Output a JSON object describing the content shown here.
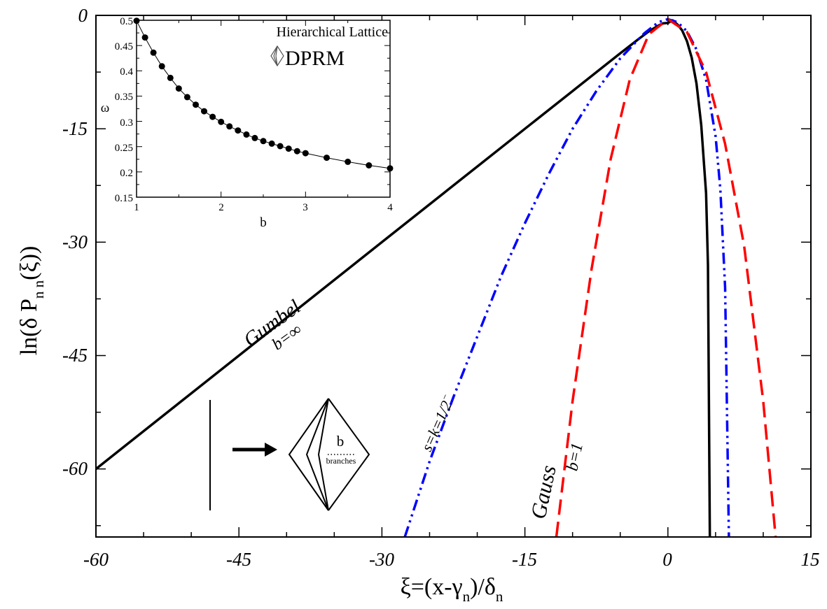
{
  "chart_data": [
    {
      "type": "line",
      "xlabel": "ξ=(x-γ_n)/δ_n",
      "ylabel": "ln(δ_n P_n(ξ))",
      "xlim": [
        -60,
        15
      ],
      "ylim": [
        -69,
        0
      ],
      "xticks": [
        -60,
        -45,
        -30,
        -15,
        0,
        15
      ],
      "yticks": [
        0,
        -15,
        -30,
        -45,
        -60
      ],
      "grid": false,
      "series": [
        {
          "name": "Gumbel b=∞",
          "color": "#000000",
          "style": "solid",
          "x": [
            -60,
            -50,
            -40,
            -30,
            -20,
            -10,
            -5,
            -3,
            -2,
            -1,
            -0.5,
            0,
            0.5,
            1,
            1.5,
            2,
            2.5,
            3,
            3.5,
            4,
            4.2,
            4.4
          ],
          "y": [
            -60,
            -50,
            -40,
            -30,
            -20,
            -10.01,
            -5.02,
            -3.05,
            -2.12,
            -1.35,
            -1.05,
            -1.0,
            -0.65,
            -1.2,
            -2.0,
            -3.4,
            -5.6,
            -9.0,
            -14.5,
            -23.5,
            -33.0,
            -69
          ]
        },
        {
          "name": "s=k=1/2⁻",
          "color": "#0000ff",
          "style": "dashdotdot",
          "x": [
            -27.6,
            -25,
            -22.5,
            -20,
            -17.5,
            -15,
            -12.5,
            -10,
            -7.5,
            -5,
            -2.5,
            -1,
            0,
            1,
            2,
            3,
            4,
            5,
            5.5,
            6,
            6.4
          ],
          "y": [
            -69,
            -59,
            -50.5,
            -42.5,
            -34.5,
            -27.5,
            -21,
            -15,
            -10,
            -5.7,
            -2.4,
            -0.9,
            -0.5,
            -0.9,
            -2.1,
            -4.5,
            -8.5,
            -16,
            -23,
            -36,
            -69
          ]
        },
        {
          "name": "Gauss b=1",
          "color": "#ff0000",
          "style": "dashed",
          "x": [
            -11.7,
            -10,
            -8,
            -6,
            -4,
            -2,
            0,
            2,
            4,
            6,
            8,
            10,
            11.3
          ],
          "y": [
            -69,
            -51,
            -33.5,
            -19,
            -8.5,
            -2.5,
            -0.5,
            -2.2,
            -7.5,
            -17,
            -30.5,
            -51,
            -69
          ]
        }
      ],
      "annotations": [
        {
          "text": "Gumbel",
          "x": -40,
          "y": -40
        },
        {
          "text": "b=∞",
          "x": -38,
          "y": -43
        },
        {
          "text": "s=k=1/2⁻",
          "x": -24,
          "y": -55
        },
        {
          "text": "Gauss",
          "x": -11,
          "y": -61
        },
        {
          "text": "b=1",
          "x": -9.5,
          "y": -60
        }
      ]
    },
    {
      "type": "line",
      "title": "Hierarchical Lattice DPRM",
      "xlabel": "b",
      "ylabel": "ω",
      "xlim": [
        1,
        4
      ],
      "ylim": [
        0.15,
        0.5
      ],
      "xticks": [
        1,
        2,
        3,
        4
      ],
      "yticks": [
        0.15,
        0.2,
        0.25,
        0.3,
        0.35,
        0.4,
        0.45,
        0.5
      ],
      "series": [
        {
          "name": "ω(b)",
          "color": "#000000",
          "x": [
            1.0,
            1.1,
            1.2,
            1.3,
            1.4,
            1.5,
            1.6,
            1.7,
            1.8,
            1.9,
            2.0,
            2.1,
            2.2,
            2.3,
            2.4,
            2.5,
            2.6,
            2.7,
            2.8,
            2.9,
            3.0,
            3.25,
            3.5,
            3.75,
            4.0
          ],
          "y": [
            0.499,
            0.466,
            0.436,
            0.409,
            0.386,
            0.365,
            0.348,
            0.333,
            0.32,
            0.309,
            0.299,
            0.29,
            0.282,
            0.274,
            0.267,
            0.261,
            0.256,
            0.251,
            0.246,
            0.241,
            0.237,
            0.228,
            0.22,
            0.213,
            0.207
          ]
        }
      ]
    }
  ],
  "labels": {
    "x_tick_labels": [
      "-60",
      "-45",
      "-30",
      "-15",
      "0",
      "15"
    ],
    "y_tick_labels": [
      "0",
      "-15",
      "-30",
      "-45",
      "-60"
    ],
    "xlabel_main": "ξ=(x-γ",
    "xlabel_sub1": "n",
    "xlabel_mid": ")/δ",
    "xlabel_sub2": "n",
    "ylabel_main": "ln(δ P",
    "ylabel_subs": "n  n",
    "ylabel_end": "(ξ))",
    "gumbel": "Gumbel",
    "gumbel_b": "b=∞",
    "skew": "s=k=1/2",
    "skew_sup": "−",
    "gauss": "Gauss",
    "gauss_b": "b=1",
    "inset_title1": "Hierarchical Lattice",
    "inset_title2": "DPRM",
    "inset_xlabel": "b",
    "inset_ylabel": "ω",
    "inset_x_ticks": [
      "1",
      "2",
      "3",
      "4"
    ],
    "inset_y_ticks": [
      "0.15",
      "0.2",
      "0.25",
      "0.3",
      "0.35",
      "0.4",
      "0.45",
      "0.5"
    ],
    "diagram_b": "b",
    "diagram_branches": "branches"
  }
}
